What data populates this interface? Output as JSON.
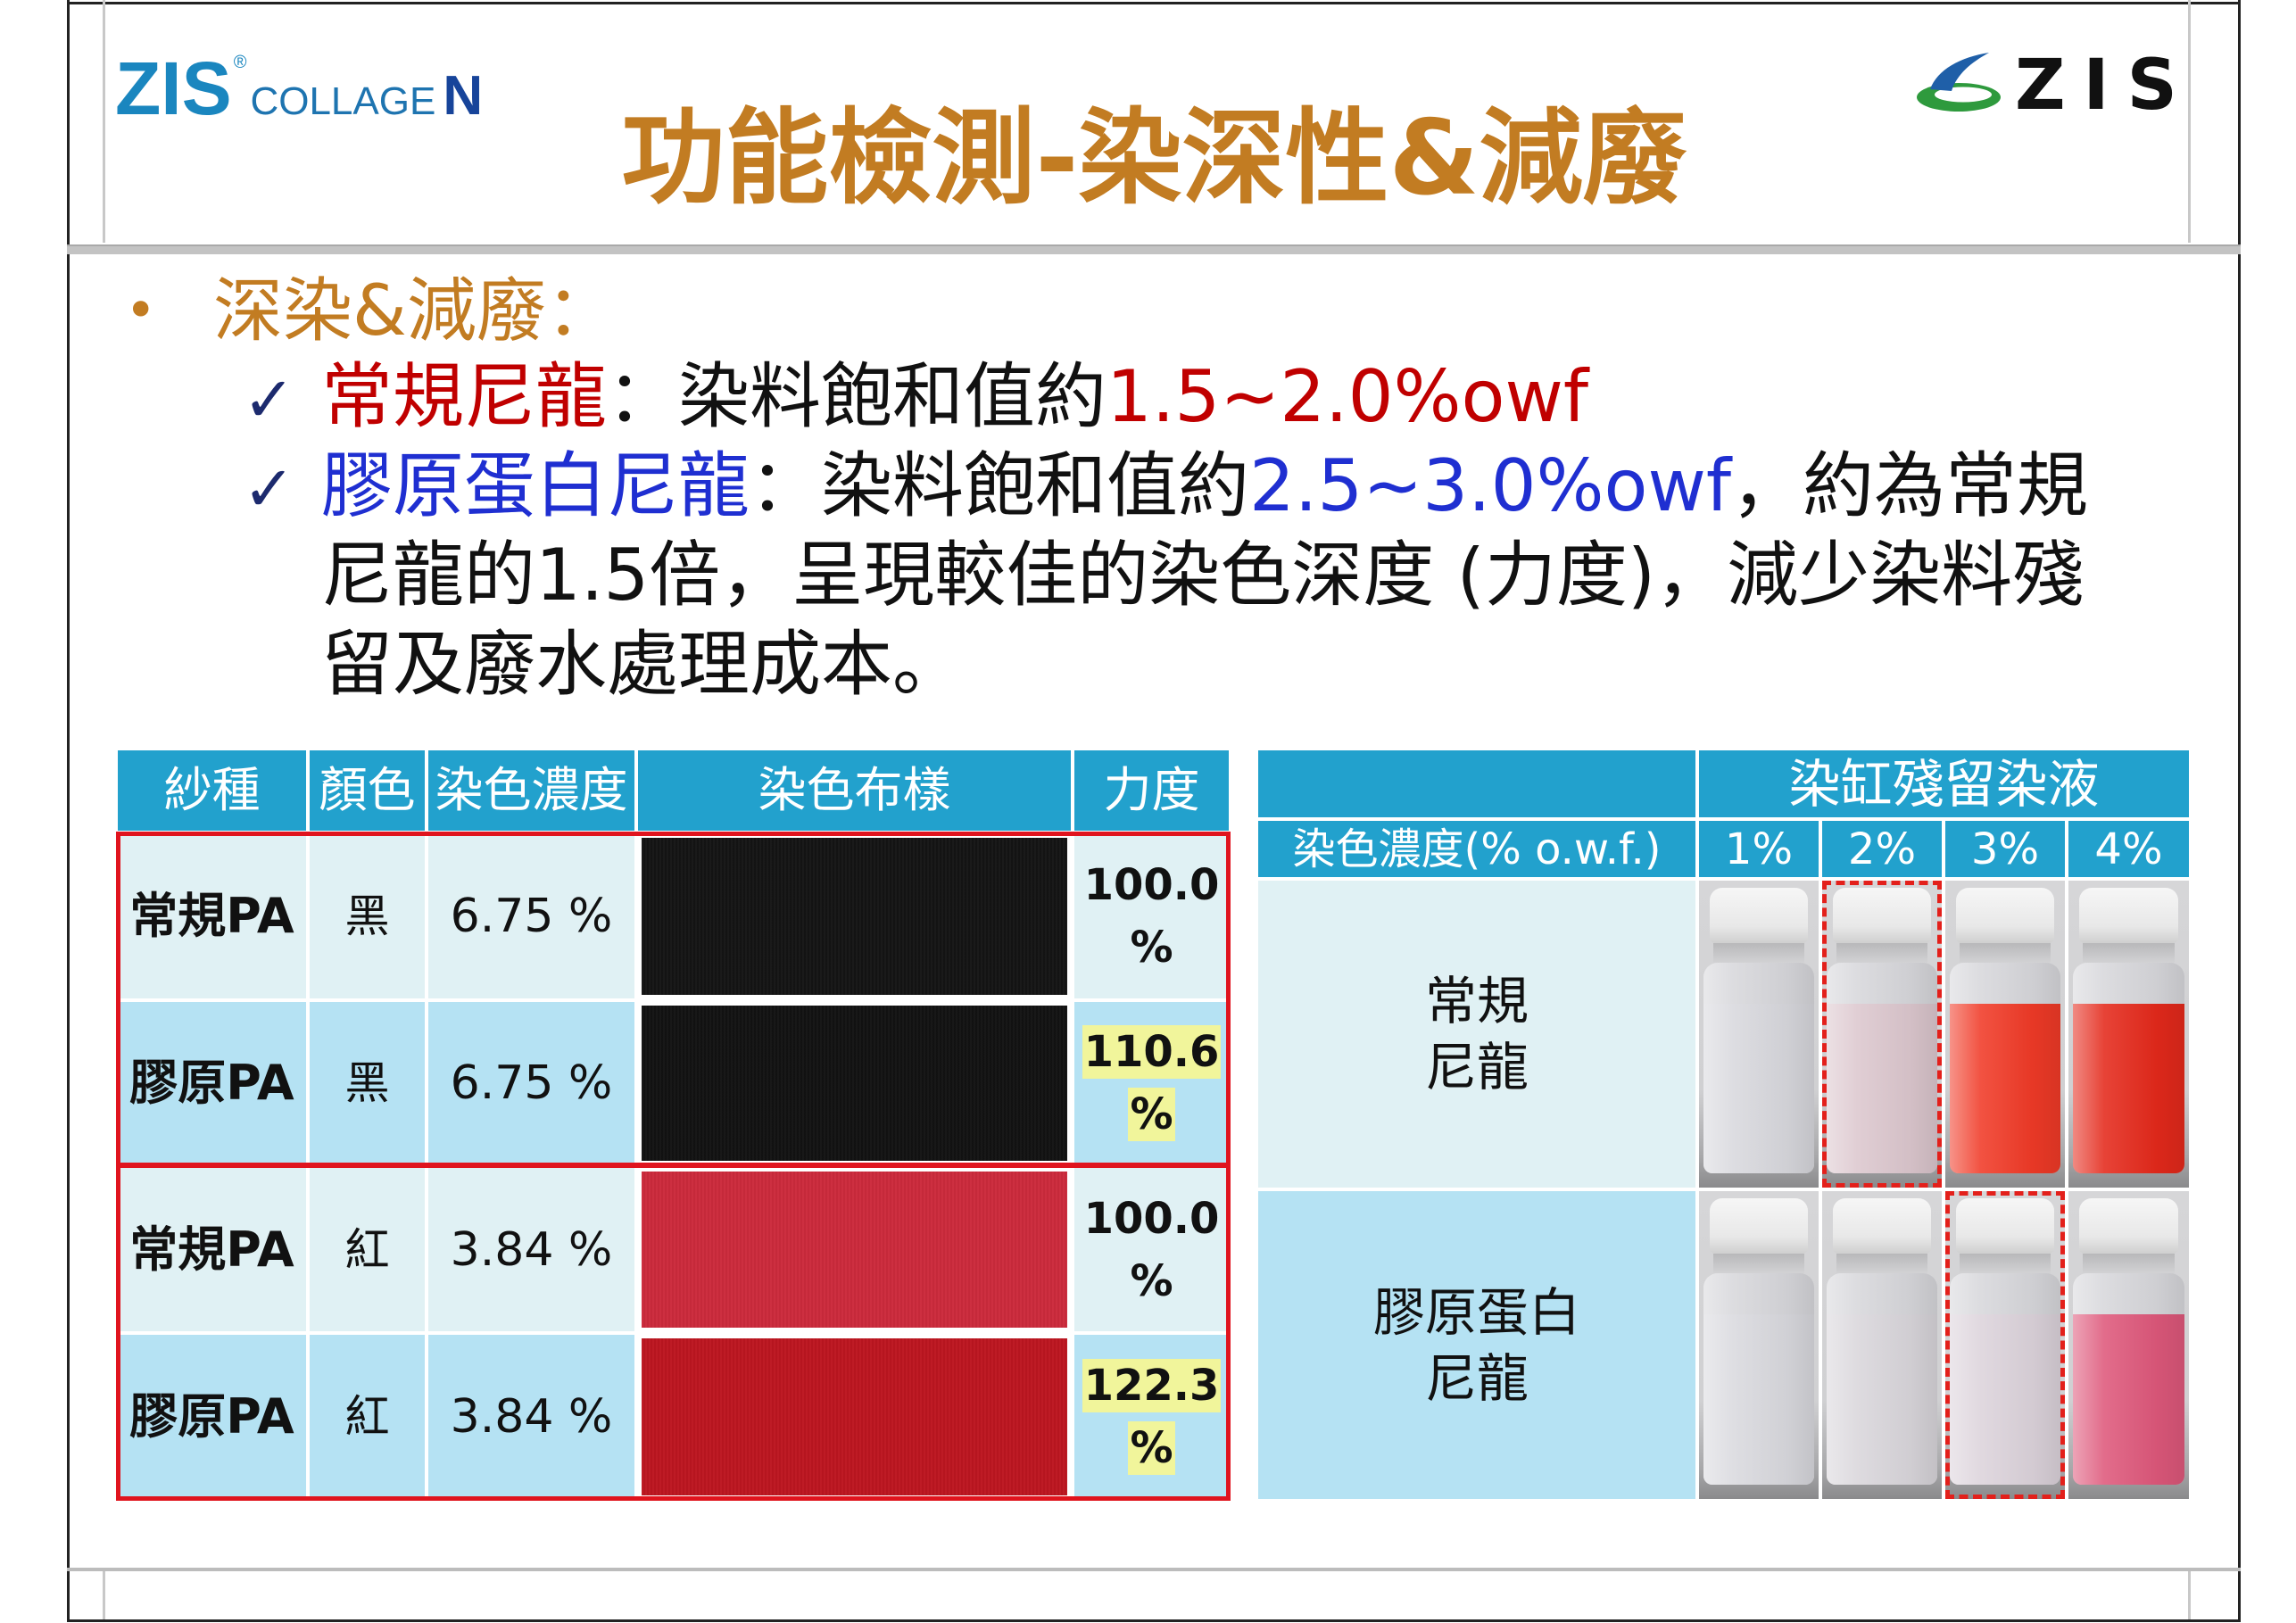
{
  "colors": {
    "title": "#c27c22",
    "nylon_regular": "#c00000",
    "nylon_collagen": "#1f2fd1",
    "table_header": "#22a1cd",
    "row_pale": "#e0f1f4",
    "row_blue": "#b5e2f3",
    "group_outline": "#e0141e",
    "highlight": "#f1f59b",
    "marker": "#e3201b"
  },
  "header": {
    "logo_left": {
      "brand": "ZIS",
      "mark": "®",
      "product": "COLLAGE",
      "product_suffix": "N"
    },
    "logo_right": {
      "brand": "ZIS",
      "icon": "swirl-emblem-icon"
    },
    "title": "功能檢測-染深性&減廢"
  },
  "body": {
    "bullet": {
      "marker": "•",
      "text": "深染&減廢："
    },
    "points": [
      {
        "check": "✓",
        "label": "常規尼龍",
        "text": "：染料飽和值約",
        "value": "1.5~2.0%owf"
      },
      {
        "check": "✓",
        "label": "膠原蛋白尼龍",
        "text": "：染料飽和值約",
        "value": "2.5~3.0%owf",
        "tail": "，約為常規",
        "continuation": [
          "尼龍的1.5倍，呈現較佳的染色深度 (力度)，減少染料殘",
          "留及廢水處理成本。"
        ]
      }
    ]
  },
  "strength_table": {
    "headers": [
      "紗種",
      "顏色",
      "染色濃度",
      "染色布樣",
      "力度"
    ],
    "rows": [
      {
        "yarn": "常規PA",
        "color": "黑",
        "concentration": "6.75 %",
        "swatch": "#141414",
        "strength": "100.0",
        "unit": "%",
        "highlighted": false
      },
      {
        "yarn": "膠原PA",
        "color": "黑",
        "concentration": "6.75 %",
        "swatch": "#121212",
        "strength": "110.6",
        "unit": "%",
        "highlighted": true
      },
      {
        "yarn": "常規PA",
        "color": "紅",
        "concentration": "3.84 %",
        "swatch": "#cc2a3c",
        "strength": "100.0",
        "unit": "%",
        "highlighted": false
      },
      {
        "yarn": "膠原PA",
        "color": "紅",
        "concentration": "3.84 %",
        "swatch": "#bd1620",
        "strength": "122.3",
        "unit": "%",
        "highlighted": true
      }
    ]
  },
  "residual_table": {
    "title": "染缸殘留染液",
    "concentration_label": "染色濃度(% o.w.f.)",
    "levels": [
      "1%",
      "2%",
      "3%",
      "4%"
    ],
    "rows": [
      {
        "label": [
          "常規",
          "尼龍"
        ],
        "vials": [
          {
            "liquid": "#d8d8dd",
            "marked": false
          },
          {
            "liquid": "#dcc7ce",
            "marked": true
          },
          {
            "liquid": "#f03a27",
            "marked": false
          },
          {
            "liquid": "#e4291b",
            "marked": false
          }
        ]
      },
      {
        "label": [
          "膠原蛋白",
          "尼龍"
        ],
        "vials": [
          {
            "liquid": "#d9d9de",
            "marked": false
          },
          {
            "liquid": "#d9d6db",
            "marked": false
          },
          {
            "liquid": "#dcd3db",
            "marked": true
          },
          {
            "liquid": "#de587b",
            "marked": false
          }
        ]
      }
    ]
  }
}
